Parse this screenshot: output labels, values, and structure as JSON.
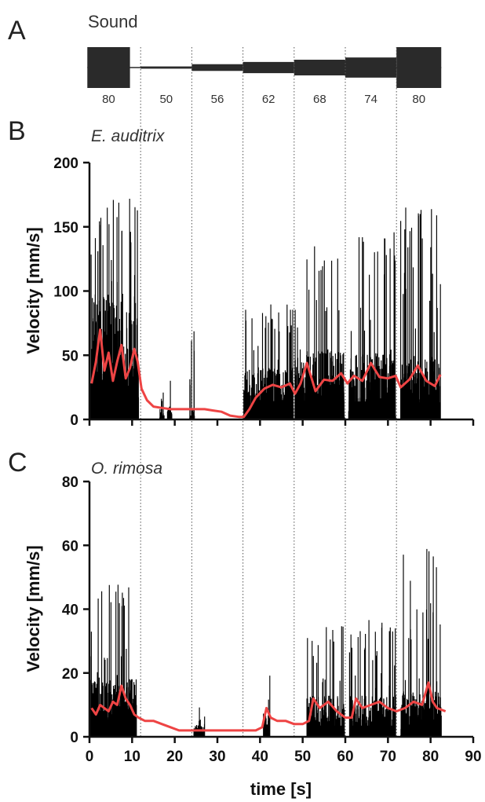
{
  "panels": {
    "a_letter": "A",
    "b_letter": "B",
    "c_letter": "C"
  },
  "sound": {
    "label": "Sound",
    "segments": [
      {
        "label": "80",
        "level": 80,
        "t_start": -0.5,
        "t_end": 9.5
      },
      {
        "label": "50",
        "level": 50,
        "t_start": 12,
        "t_end": 24
      },
      {
        "label": "56",
        "level": 56,
        "t_start": 24,
        "t_end": 36
      },
      {
        "label": "62",
        "level": 62,
        "t_start": 36,
        "t_end": 48
      },
      {
        "label": "68",
        "level": 68,
        "t_start": 48,
        "t_end": 60
      },
      {
        "label": "74",
        "level": 74,
        "t_start": 60,
        "t_end": 72
      },
      {
        "label": "80",
        "level": 80,
        "t_start": 72,
        "t_end": 82.5
      }
    ]
  },
  "chart_data": [
    {
      "type": "line",
      "panel": "B",
      "title": "E. auditrix",
      "ylabel": "Velocity [mm/s]",
      "xlabel": "",
      "xlim": [
        0,
        90
      ],
      "ylim": [
        0,
        200
      ],
      "xticks": [
        0,
        10,
        20,
        30,
        40,
        50,
        60,
        70,
        80,
        90
      ],
      "yticks": [
        0,
        50,
        100,
        150,
        200
      ],
      "show_x_tick_labels": false,
      "phase_boundaries": [
        12,
        24,
        36,
        48,
        60,
        72
      ],
      "series": [
        {
          "role": "raw",
          "color": "#000000",
          "activity_windows": [
            {
              "from": 0.3,
              "to": 11.5,
              "envelope": 75,
              "peak": 172
            },
            {
              "from": 16.5,
              "to": 17.5,
              "envelope": 6,
              "peak": 22
            },
            {
              "from": 18.3,
              "to": 19.3,
              "envelope": 8,
              "peak": 33
            },
            {
              "from": 23.5,
              "to": 24.6,
              "envelope": 6,
              "peak": 78
            },
            {
              "from": 36.2,
              "to": 47.8,
              "envelope": 32,
              "peak": 90
            },
            {
              "from": 48.2,
              "to": 59.8,
              "envelope": 42,
              "peak": 135
            },
            {
              "from": 60.8,
              "to": 71.8,
              "envelope": 40,
              "peak": 146
            },
            {
              "from": 73.0,
              "to": 82.3,
              "envelope": 38,
              "peak": 167
            }
          ]
        },
        {
          "role": "smoothed",
          "color": "#ee4444",
          "x": [
            0.5,
            1.5,
            2.5,
            3.5,
            4.5,
            5.5,
            6.5,
            7.5,
            8.5,
            9.5,
            10.5,
            11.3,
            12.2,
            13.5,
            15,
            17,
            19,
            21,
            23,
            25,
            27,
            29,
            31,
            33,
            35,
            36.2,
            37.5,
            39,
            41,
            43,
            45,
            47,
            48.2,
            49.5,
            51,
            53,
            55,
            57,
            59,
            60.5,
            62,
            64,
            66,
            68,
            70,
            71.8,
            73,
            75,
            77,
            79,
            81,
            82.3
          ],
          "y": [
            28,
            45,
            70,
            38,
            52,
            30,
            45,
            58,
            32,
            40,
            55,
            45,
            24,
            15,
            10,
            9,
            8,
            8,
            8,
            8,
            8,
            7,
            6,
            3,
            2,
            2,
            8,
            17,
            24,
            27,
            25,
            28,
            20,
            28,
            44,
            22,
            31,
            30,
            36,
            28,
            34,
            30,
            44,
            33,
            32,
            34,
            25,
            31,
            42,
            30,
            26,
            35
          ]
        }
      ]
    },
    {
      "type": "line",
      "panel": "C",
      "title": "O. rimosa",
      "ylabel": "Velocity [mm/s]",
      "xlabel": "time [s]",
      "xlim": [
        0,
        90
      ],
      "ylim": [
        0,
        80
      ],
      "xticks": [
        0,
        10,
        20,
        30,
        40,
        50,
        60,
        70,
        80,
        90
      ],
      "yticks": [
        0,
        20,
        40,
        60,
        80
      ],
      "show_x_tick_labels": true,
      "phase_boundaries": [
        12,
        24,
        36,
        48,
        60,
        72
      ],
      "series": [
        {
          "role": "raw",
          "color": "#000000",
          "activity_windows": [
            {
              "from": 0.2,
              "to": 11.0,
              "envelope": 14,
              "peak": 48
            },
            {
              "from": 24.5,
              "to": 27.0,
              "envelope": 3,
              "peak": 10
            },
            {
              "from": 40.8,
              "to": 42.3,
              "envelope": 6,
              "peak": 20
            },
            {
              "from": 51.0,
              "to": 59.8,
              "envelope": 10,
              "peak": 35
            },
            {
              "from": 61.0,
              "to": 71.8,
              "envelope": 10,
              "peak": 37
            },
            {
              "from": 73.0,
              "to": 82.5,
              "envelope": 11,
              "peak": 61
            }
          ]
        },
        {
          "role": "smoothed",
          "color": "#ee4444",
          "x": [
            0.5,
            1.5,
            2.5,
            3.5,
            4.5,
            5.5,
            6.5,
            7.5,
            8.5,
            9.5,
            10.5,
            11.5,
            13,
            15,
            17,
            19,
            21,
            23,
            25,
            27,
            29,
            31,
            33,
            35,
            37,
            39,
            40.5,
            41.5,
            42.5,
            44,
            46,
            48,
            50,
            51.5,
            52.5,
            54,
            56,
            58,
            60,
            61.5,
            62.5,
            64,
            66,
            68,
            70,
            72,
            74,
            76,
            78,
            79.5,
            80.5,
            81.5,
            83.5
          ],
          "y": [
            9,
            7,
            10,
            9,
            8,
            11,
            10,
            16,
            12,
            10,
            7,
            6,
            5,
            5,
            4,
            3,
            2,
            2,
            2,
            2,
            2,
            2,
            2,
            2,
            2,
            2,
            3,
            9,
            6,
            5,
            5,
            4,
            4,
            5,
            12,
            9,
            11,
            8,
            6,
            6,
            12,
            9,
            10,
            11,
            9,
            8,
            9,
            11,
            10,
            17,
            11,
            9,
            8
          ]
        }
      ]
    }
  ]
}
